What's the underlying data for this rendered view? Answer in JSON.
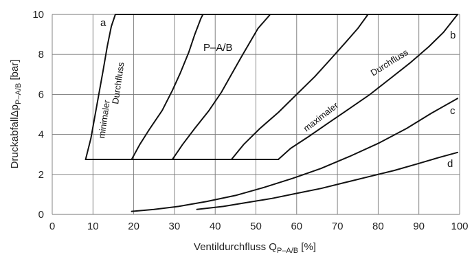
{
  "chart_data": {
    "type": "line",
    "xlabel": "Ventildurchfluss Q",
    "xlabel_sub": "P–A/B",
    "xlabel_unit": " [%]",
    "ylabel": "DruckabfallΔp",
    "ylabel_sub": "P–A/B",
    "ylabel_unit": " [bar]",
    "xlim": [
      0,
      100
    ],
    "ylim": [
      0,
      10
    ],
    "xticks": [
      "0",
      "10",
      "20",
      "30",
      "40",
      "50",
      "60",
      "70",
      "80",
      "90",
      "100"
    ],
    "yticks": [
      "0",
      "2",
      "4",
      "6",
      "8",
      "10"
    ],
    "grid": true,
    "series": [
      {
        "name": "a",
        "x": [
          8.2,
          9.5,
          11,
          12.5,
          13.5,
          14.5,
          15.5
        ],
        "y": [
          2.75,
          3.8,
          5.5,
          7.2,
          8.4,
          9.4,
          10
        ]
      },
      {
        "name": "",
        "x": [
          19.5,
          21.5,
          24,
          27,
          29.5,
          31.5,
          33.5,
          35,
          36.5,
          37
        ],
        "y": [
          2.75,
          3.5,
          4.3,
          5.2,
          6.2,
          7.1,
          8.1,
          9,
          9.8,
          10
        ]
      },
      {
        "name": "",
        "x": [
          29.5,
          32,
          35,
          38.5,
          41.5,
          44,
          46.5,
          48.5,
          50.5,
          53.5
        ],
        "y": [
          2.75,
          3.5,
          4.3,
          5.2,
          6.1,
          7,
          7.9,
          8.6,
          9.3,
          10
        ]
      },
      {
        "name": "",
        "x": [
          44,
          47,
          51,
          55.5,
          60,
          64.5,
          68.5,
          72,
          75,
          77.5
        ],
        "y": [
          2.75,
          3.5,
          4.3,
          5.1,
          6,
          6.9,
          7.8,
          8.6,
          9.3,
          10
        ]
      },
      {
        "name": "b",
        "x": [
          55.5,
          58.5,
          63,
          68,
          73,
          78,
          83,
          88,
          92.5,
          96,
          99.5
        ],
        "y": [
          2.75,
          3.3,
          3.9,
          4.6,
          5.3,
          6,
          6.8,
          7.6,
          8.4,
          9.1,
          10
        ]
      },
      {
        "name": "c",
        "x": [
          19.5,
          25,
          31,
          38,
          45,
          52,
          59,
          66,
          73,
          80,
          87,
          93,
          99.5
        ],
        "y": [
          0.15,
          0.25,
          0.4,
          0.65,
          0.95,
          1.35,
          1.8,
          2.3,
          2.9,
          3.55,
          4.3,
          5.05,
          5.8
        ]
      },
      {
        "name": "d",
        "x": [
          35.5,
          42,
          48,
          54,
          60,
          66,
          72,
          78,
          84,
          90,
          95,
          99.5
        ],
        "y": [
          0.25,
          0.4,
          0.6,
          0.8,
          1.05,
          1.3,
          1.6,
          1.9,
          2.2,
          2.55,
          2.85,
          3.1
        ]
      }
    ],
    "base_line": {
      "x": [
        8.2,
        55.5
      ],
      "y": [
        2.75,
        2.75
      ]
    },
    "top_line": {
      "x": [
        15.5,
        99.5
      ],
      "y": [
        10,
        10
      ]
    },
    "annotations": {
      "a": "a",
      "b": "b",
      "c": "c",
      "d": "d",
      "p_ab": "P–A/B",
      "minimaler": "minimaler",
      "durchfluss_min": "Durchfluss",
      "maximaler": "maximaler",
      "durchfluss_max": "Durchfluss"
    }
  }
}
